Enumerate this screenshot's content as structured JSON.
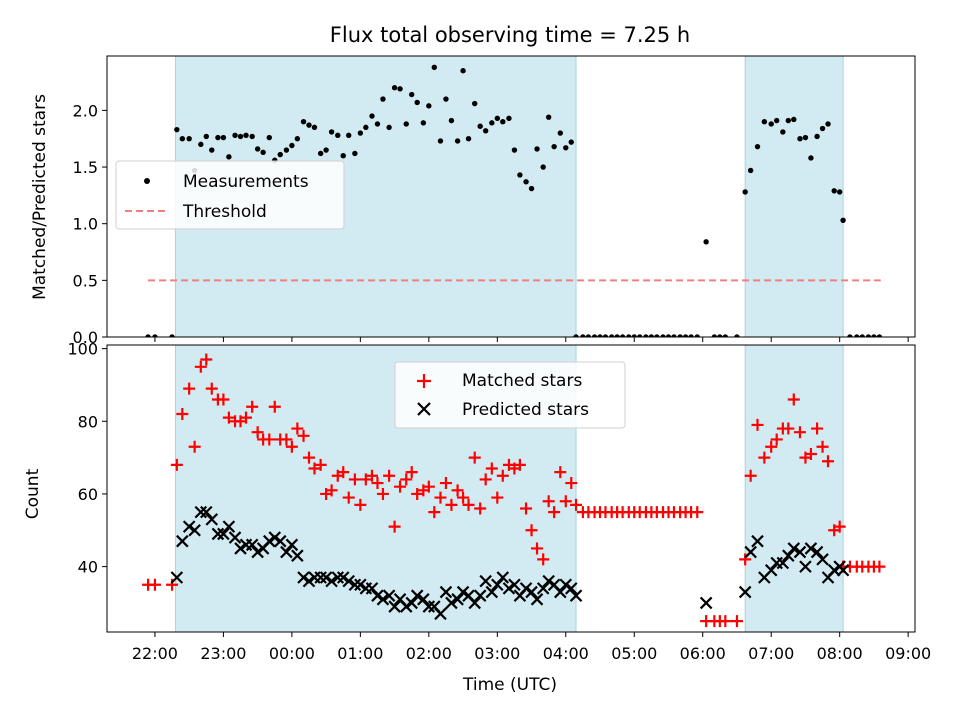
{
  "chart_data": [
    {
      "type": "scatter",
      "title": "Flux total observing time = 7.25 h",
      "ylabel": "Matched/Predicted stars",
      "xlabel": "",
      "ylim": [
        0,
        2.48
      ],
      "yticks": [
        0.0,
        0.5,
        1.0,
        1.5,
        2.0
      ],
      "ytick_labels": [
        "0.0",
        "0.5",
        "1.0",
        "1.5",
        "2.0"
      ],
      "legend_position": "center-left",
      "grid": false,
      "shaded_intervals_hours": [
        [
          -1.7,
          4.15
        ],
        [
          6.62,
          8.05
        ]
      ],
      "shade_color": "#add8e6",
      "series": [
        {
          "name": "Measurements",
          "marker": "dot",
          "color": "#000000",
          "x": [
            -2.1,
            -2.0,
            -1.75,
            -1.68,
            -1.6,
            -1.5,
            -1.42,
            -1.33,
            -1.25,
            -1.17,
            -1.08,
            -1.0,
            -0.92,
            -0.83,
            -0.75,
            -0.67,
            -0.58,
            -0.5,
            -0.42,
            -0.33,
            -0.25,
            -0.17,
            -0.08,
            0.0,
            0.08,
            0.17,
            0.25,
            0.33,
            0.42,
            0.5,
            0.58,
            0.67,
            0.75,
            0.83,
            0.92,
            1.0,
            1.08,
            1.17,
            1.25,
            1.33,
            1.42,
            1.5,
            1.58,
            1.67,
            1.75,
            1.83,
            1.92,
            2.0,
            2.08,
            2.17,
            2.25,
            2.33,
            2.42,
            2.5,
            2.58,
            2.67,
            2.75,
            2.83,
            2.92,
            3.0,
            3.08,
            3.17,
            3.25,
            3.33,
            3.42,
            3.5,
            3.58,
            3.67,
            3.75,
            3.83,
            3.92,
            4.0,
            4.08,
            4.15,
            4.25,
            4.33,
            4.42,
            4.5,
            4.58,
            4.67,
            4.75,
            4.83,
            4.92,
            5.0,
            5.08,
            5.17,
            5.25,
            5.33,
            5.42,
            5.5,
            5.58,
            5.67,
            5.75,
            5.83,
            5.92,
            6.05,
            6.17,
            6.25,
            6.33,
            6.5,
            6.62,
            6.7,
            6.8,
            6.9,
            7.0,
            7.08,
            7.17,
            7.25,
            7.33,
            7.42,
            7.5,
            7.58,
            7.67,
            7.75,
            7.83,
            7.92,
            8.0,
            8.05,
            8.15,
            8.25,
            8.33,
            8.42,
            8.5,
            8.58
          ],
          "y": [
            0.0,
            0.0,
            0.0,
            1.83,
            1.75,
            1.75,
            1.47,
            1.7,
            1.77,
            1.65,
            1.76,
            1.76,
            1.59,
            1.78,
            1.77,
            1.78,
            1.77,
            1.66,
            1.63,
            1.76,
            1.56,
            1.61,
            1.65,
            1.69,
            1.75,
            1.9,
            1.87,
            1.85,
            1.62,
            1.65,
            1.81,
            1.78,
            1.6,
            1.78,
            1.62,
            1.8,
            1.85,
            1.95,
            1.88,
            2.1,
            1.85,
            2.2,
            2.19,
            1.88,
            2.14,
            2.07,
            1.89,
            2.04,
            2.38,
            1.73,
            2.1,
            1.91,
            1.73,
            2.35,
            1.75,
            2.06,
            1.86,
            1.82,
            1.89,
            1.93,
            1.9,
            1.93,
            1.65,
            1.43,
            1.37,
            1.31,
            1.66,
            1.5,
            1.94,
            1.68,
            1.8,
            1.67,
            1.72,
            0.0,
            0.0,
            0.0,
            0.0,
            0.0,
            0.0,
            0.0,
            0.0,
            0.0,
            0.0,
            0.0,
            0.0,
            0.0,
            0.0,
            0.0,
            0.0,
            0.0,
            0.0,
            0.0,
            0.0,
            0.0,
            0.0,
            0.84,
            0.0,
            0.0,
            0.0,
            0.0,
            1.28,
            1.47,
            1.68,
            1.9,
            1.88,
            1.91,
            1.81,
            1.91,
            1.92,
            1.75,
            1.76,
            1.58,
            1.77,
            1.84,
            1.88,
            1.29,
            1.28,
            1.03,
            0.0,
            0.0,
            0.0,
            0.0,
            0.0,
            0.0
          ]
        },
        {
          "name": "Threshold",
          "marker": "dashed-line",
          "color": "#f08080",
          "x": [
            -2.1,
            8.6
          ],
          "y": [
            0.5,
            0.5
          ]
        }
      ]
    },
    {
      "type": "scatter",
      "title": "",
      "ylabel": "Count",
      "xlabel": "Time (UTC)",
      "ylim": [
        22,
        101
      ],
      "yticks": [
        40,
        60,
        80,
        100
      ],
      "ytick_labels": [
        "40",
        "60",
        "80",
        "100"
      ],
      "xlim": [
        -2.7,
        9.1
      ],
      "xticks": [
        -2,
        -1,
        0,
        1,
        2,
        3,
        4,
        5,
        6,
        7,
        8,
        9
      ],
      "xtick_labels": [
        "22:00",
        "23:00",
        "00:00",
        "01:00",
        "02:00",
        "03:00",
        "04:00",
        "05:00",
        "06:00",
        "07:00",
        "08:00",
        "09:00"
      ],
      "legend_position": "top-center",
      "grid": false,
      "shaded_intervals_hours": [
        [
          -1.7,
          4.15
        ],
        [
          6.62,
          8.05
        ]
      ],
      "shade_color": "#add8e6",
      "series": [
        {
          "name": "Matched stars",
          "marker": "plus",
          "color": "#ff0000",
          "x": [
            -2.1,
            -2.0,
            -1.75,
            -1.68,
            -1.6,
            -1.5,
            -1.42,
            -1.33,
            -1.25,
            -1.17,
            -1.08,
            -1.0,
            -0.92,
            -0.83,
            -0.75,
            -0.67,
            -0.58,
            -0.5,
            -0.42,
            -0.33,
            -0.25,
            -0.17,
            -0.08,
            0.0,
            0.08,
            0.17,
            0.25,
            0.33,
            0.42,
            0.5,
            0.58,
            0.67,
            0.75,
            0.83,
            0.92,
            1.0,
            1.08,
            1.17,
            1.25,
            1.33,
            1.42,
            1.5,
            1.58,
            1.67,
            1.75,
            1.83,
            1.92,
            2.0,
            2.08,
            2.17,
            2.25,
            2.33,
            2.42,
            2.5,
            2.58,
            2.67,
            2.75,
            2.83,
            2.92,
            3.0,
            3.08,
            3.17,
            3.25,
            3.33,
            3.42,
            3.5,
            3.58,
            3.67,
            3.75,
            3.83,
            3.92,
            4.0,
            4.08,
            4.15,
            4.25,
            4.33,
            4.42,
            4.5,
            4.58,
            4.67,
            4.75,
            4.83,
            4.92,
            5.0,
            5.08,
            5.17,
            5.25,
            5.33,
            5.42,
            5.5,
            5.58,
            5.67,
            5.75,
            5.83,
            5.92,
            6.05,
            6.17,
            6.25,
            6.33,
            6.5,
            6.62,
            6.7,
            6.8,
            6.9,
            7.0,
            7.08,
            7.17,
            7.25,
            7.33,
            7.42,
            7.5,
            7.58,
            7.67,
            7.75,
            7.83,
            7.92,
            8.0,
            8.05,
            8.15,
            8.25,
            8.33,
            8.42,
            8.5,
            8.58
          ],
          "y": [
            35,
            35,
            35,
            68,
            82,
            89,
            73,
            95,
            97,
            89,
            86,
            86,
            81,
            80,
            80,
            81,
            84,
            77,
            75,
            75,
            84,
            75,
            75,
            73,
            78,
            76,
            70,
            67,
            68,
            60,
            61,
            65,
            66,
            59,
            64,
            57,
            64,
            65,
            63,
            60,
            65,
            51,
            62,
            64,
            66,
            60,
            61,
            62,
            55,
            59,
            63,
            57,
            61,
            59,
            57,
            70,
            56,
            64,
            67,
            59,
            65,
            68,
            67,
            68,
            56,
            50,
            45,
            42,
            58,
            55,
            66,
            58,
            63,
            57,
            55,
            55,
            55,
            55,
            55,
            55,
            55,
            55,
            55,
            55,
            55,
            55,
            55,
            55,
            55,
            55,
            55,
            55,
            55,
            55,
            55,
            25,
            25,
            25,
            25,
            25,
            42,
            65,
            79,
            70,
            73,
            75,
            78,
            78,
            86,
            77,
            70,
            71,
            78,
            73,
            69,
            50,
            51,
            40,
            40,
            40,
            40,
            40,
            40,
            40
          ]
        },
        {
          "name": "Predicted stars",
          "marker": "x",
          "color": "#000000",
          "x": [
            -1.68,
            -1.6,
            -1.5,
            -1.42,
            -1.33,
            -1.25,
            -1.17,
            -1.08,
            -1.0,
            -0.92,
            -0.83,
            -0.75,
            -0.67,
            -0.58,
            -0.5,
            -0.42,
            -0.33,
            -0.25,
            -0.17,
            -0.08,
            0.0,
            0.08,
            0.17,
            0.25,
            0.33,
            0.42,
            0.5,
            0.58,
            0.67,
            0.75,
            0.83,
            0.92,
            1.0,
            1.08,
            1.17,
            1.25,
            1.33,
            1.42,
            1.5,
            1.58,
            1.67,
            1.75,
            1.83,
            1.92,
            2.0,
            2.08,
            2.17,
            2.25,
            2.33,
            2.42,
            2.5,
            2.58,
            2.67,
            2.75,
            2.83,
            2.92,
            3.0,
            3.08,
            3.17,
            3.25,
            3.33,
            3.42,
            3.5,
            3.58,
            3.67,
            3.75,
            3.83,
            3.92,
            4.0,
            4.08,
            4.15,
            6.05,
            6.62,
            6.7,
            6.8,
            6.9,
            7.0,
            7.08,
            7.17,
            7.25,
            7.33,
            7.42,
            7.5,
            7.58,
            7.67,
            7.75,
            7.83,
            7.92,
            8.0,
            8.05
          ],
          "y": [
            37,
            47,
            51,
            50,
            55,
            55,
            53,
            49,
            49,
            51,
            48,
            45,
            46,
            46,
            44,
            45,
            47,
            48,
            47,
            44,
            46,
            43,
            37,
            36,
            37,
            37,
            37,
            36,
            37,
            37,
            36,
            35,
            35,
            34,
            34,
            32,
            31,
            32,
            29,
            31,
            29,
            30,
            32,
            31,
            29,
            29,
            27,
            33,
            30,
            31,
            33,
            32,
            30,
            32,
            36,
            33,
            35,
            37,
            34,
            35,
            32,
            34,
            33,
            31,
            34,
            36,
            35,
            33,
            35,
            34,
            32,
            30,
            33,
            44,
            47,
            37,
            39,
            41,
            41,
            43,
            45,
            44,
            40,
            45,
            44,
            42,
            37,
            39,
            40,
            39
          ]
        }
      ]
    }
  ]
}
